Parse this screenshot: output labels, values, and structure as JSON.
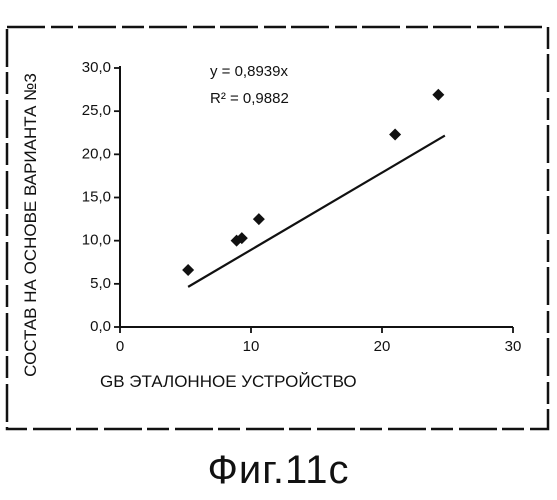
{
  "caption": "Фиг.11с",
  "chart_data": {
    "type": "scatter",
    "xlabel": "GB ЭТАЛОННОЕ УСТРОЙСТВО",
    "ylabel": "СОСТАВ НА ОСНОВЕ ВАРИАНТА №3",
    "xlim": [
      0,
      30
    ],
    "ylim": [
      0,
      30
    ],
    "x_ticks": [
      "0",
      "10",
      "20",
      "30"
    ],
    "y_ticks": [
      "0,0",
      "5,0",
      "10,0",
      "15,0",
      "20,0",
      "25,0",
      "30,0"
    ],
    "points": [
      {
        "x": 5.2,
        "y": 6.6
      },
      {
        "x": 8.9,
        "y": 10.0
      },
      {
        "x": 9.3,
        "y": 10.3
      },
      {
        "x": 10.6,
        "y": 12.5
      },
      {
        "x": 21.0,
        "y": 22.3
      },
      {
        "x": 24.3,
        "y": 26.9
      }
    ],
    "trendline": {
      "slope": 0.8939,
      "x_range": [
        5.2,
        24.8
      ]
    },
    "equation": "y = 0,8939x",
    "r_squared": "R² = 0,9882",
    "grid": false,
    "legend": "none"
  }
}
